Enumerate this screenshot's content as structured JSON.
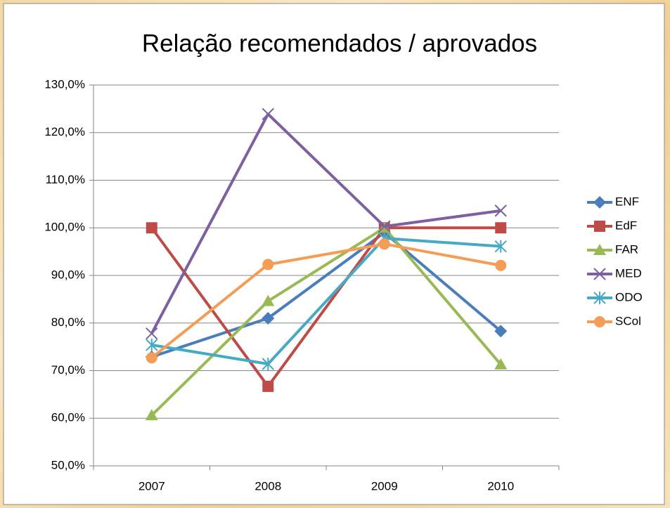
{
  "chart_data": {
    "type": "line",
    "title": "Relação recomendados / aprovados",
    "categories": [
      "2007",
      "2008",
      "2009",
      "2010"
    ],
    "series": [
      {
        "name": "ENF",
        "color": "#4a7ebb",
        "marker": "diamond",
        "values": [
          72.9,
          81.0,
          99.0,
          78.3
        ]
      },
      {
        "name": "EdF",
        "color": "#be4b48",
        "marker": "square",
        "values": [
          100,
          66.7,
          100,
          100
        ]
      },
      {
        "name": "FAR",
        "color": "#98b954",
        "marker": "triangle",
        "values": [
          60.6,
          84.6,
          100,
          71.3
        ]
      },
      {
        "name": "MED",
        "color": "#7d60a0",
        "marker": "x",
        "values": [
          77.8,
          123.9,
          100.3,
          103.6
        ]
      },
      {
        "name": "ODO",
        "color": "#46aac5",
        "marker": "asterisk",
        "values": [
          75.4,
          71.4,
          97.8,
          96.1
        ]
      },
      {
        "name": "SCol",
        "color": "#f59d56",
        "marker": "circle",
        "values": [
          72.7,
          92.3,
          96.6,
          92.1
        ]
      }
    ],
    "ylim": [
      50,
      130
    ],
    "yticks": [
      {
        "value": 50,
        "label": "50,0%"
      },
      {
        "value": 60,
        "label": "60,0%"
      },
      {
        "value": 70,
        "label": "70,0%"
      },
      {
        "value": 80,
        "label": "80,0%"
      },
      {
        "value": 90,
        "label": "90,0%"
      },
      {
        "value": 100,
        "label": "100,0%"
      },
      {
        "value": 110,
        "label": "110,0%"
      },
      {
        "value": 120,
        "label": "120,0%"
      },
      {
        "value": 130,
        "label": "130,0%"
      }
    ],
    "grid": true,
    "legend": "right"
  }
}
